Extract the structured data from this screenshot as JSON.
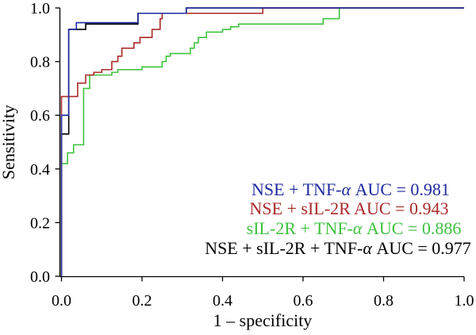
{
  "chart_data": {
    "type": "line",
    "xlabel": "1 – specificity",
    "ylabel": "Sensitivity",
    "xlim": [
      0,
      1
    ],
    "ylim": [
      0,
      1
    ],
    "xticks": [
      "0.0",
      "0.2",
      "0.4",
      "0.6",
      "0.8",
      "1.0"
    ],
    "yticks": [
      "0.0",
      "0.2",
      "0.4",
      "0.6",
      "0.8",
      "1.0"
    ],
    "grid": false,
    "legend_position": "bottom-right",
    "series": [
      {
        "name": "NSE + TNF-α AUC = 0.981",
        "color": "#1f2aa0",
        "points": [
          [
            0,
            0
          ],
          [
            0,
            0.6
          ],
          [
            0.018,
            0.6
          ],
          [
            0.018,
            0.92
          ],
          [
            0.037,
            0.92
          ],
          [
            0.037,
            0.945
          ],
          [
            0.19,
            0.945
          ],
          [
            0.19,
            0.98
          ],
          [
            0.31,
            0.98
          ],
          [
            0.31,
            1
          ],
          [
            1,
            1
          ]
        ]
      },
      {
        "name": "NSE + sIL-2R AUC = 0.943",
        "color": "#aa2a2a",
        "points": [
          [
            0,
            0
          ],
          [
            0,
            0.67
          ],
          [
            0.04,
            0.67
          ],
          [
            0.04,
            0.72
          ],
          [
            0.06,
            0.72
          ],
          [
            0.06,
            0.75
          ],
          [
            0.08,
            0.75
          ],
          [
            0.08,
            0.76
          ],
          [
            0.1,
            0.76
          ],
          [
            0.1,
            0.77
          ],
          [
            0.125,
            0.77
          ],
          [
            0.125,
            0.8
          ],
          [
            0.14,
            0.8
          ],
          [
            0.14,
            0.82
          ],
          [
            0.15,
            0.82
          ],
          [
            0.15,
            0.85
          ],
          [
            0.18,
            0.85
          ],
          [
            0.18,
            0.87
          ],
          [
            0.195,
            0.87
          ],
          [
            0.195,
            0.89
          ],
          [
            0.225,
            0.89
          ],
          [
            0.225,
            0.92
          ],
          [
            0.245,
            0.92
          ],
          [
            0.245,
            0.96
          ],
          [
            0.25,
            0.96
          ],
          [
            0.25,
            0.98
          ],
          [
            0.5,
            0.98
          ],
          [
            0.5,
            1
          ],
          [
            1,
            1
          ]
        ]
      },
      {
        "name": "sIL-2R + TNF-α AUC = 0.886",
        "color": "#3ec23e",
        "points": [
          [
            0,
            0
          ],
          [
            0,
            0.42
          ],
          [
            0.015,
            0.42
          ],
          [
            0.015,
            0.46
          ],
          [
            0.03,
            0.46
          ],
          [
            0.03,
            0.49
          ],
          [
            0.055,
            0.49
          ],
          [
            0.055,
            0.7
          ],
          [
            0.07,
            0.7
          ],
          [
            0.07,
            0.75
          ],
          [
            0.125,
            0.75
          ],
          [
            0.125,
            0.76
          ],
          [
            0.14,
            0.76
          ],
          [
            0.14,
            0.77
          ],
          [
            0.2,
            0.77
          ],
          [
            0.2,
            0.78
          ],
          [
            0.25,
            0.78
          ],
          [
            0.25,
            0.8
          ],
          [
            0.26,
            0.8
          ],
          [
            0.26,
            0.82
          ],
          [
            0.27,
            0.82
          ],
          [
            0.27,
            0.83
          ],
          [
            0.32,
            0.83
          ],
          [
            0.32,
            0.85
          ],
          [
            0.33,
            0.85
          ],
          [
            0.33,
            0.87
          ],
          [
            0.34,
            0.87
          ],
          [
            0.34,
            0.89
          ],
          [
            0.36,
            0.89
          ],
          [
            0.36,
            0.91
          ],
          [
            0.4,
            0.91
          ],
          [
            0.4,
            0.92
          ],
          [
            0.42,
            0.92
          ],
          [
            0.42,
            0.93
          ],
          [
            0.44,
            0.93
          ],
          [
            0.44,
            0.94
          ],
          [
            0.65,
            0.94
          ],
          [
            0.65,
            0.96
          ],
          [
            0.69,
            0.96
          ],
          [
            0.69,
            1
          ],
          [
            1,
            1
          ]
        ]
      },
      {
        "name": "NSE + sIL-2R + TNF-α AUC = 0.977",
        "color": "#000000",
        "points": [
          [
            0,
            0
          ],
          [
            0,
            0.53
          ],
          [
            0.018,
            0.53
          ],
          [
            0.018,
            0.92
          ],
          [
            0.06,
            0.92
          ],
          [
            0.06,
            0.94
          ],
          [
            0.19,
            0.94
          ],
          [
            0.19,
            0.98
          ],
          [
            0.31,
            0.98
          ],
          [
            0.31,
            1
          ],
          [
            1,
            1
          ]
        ]
      }
    ]
  }
}
